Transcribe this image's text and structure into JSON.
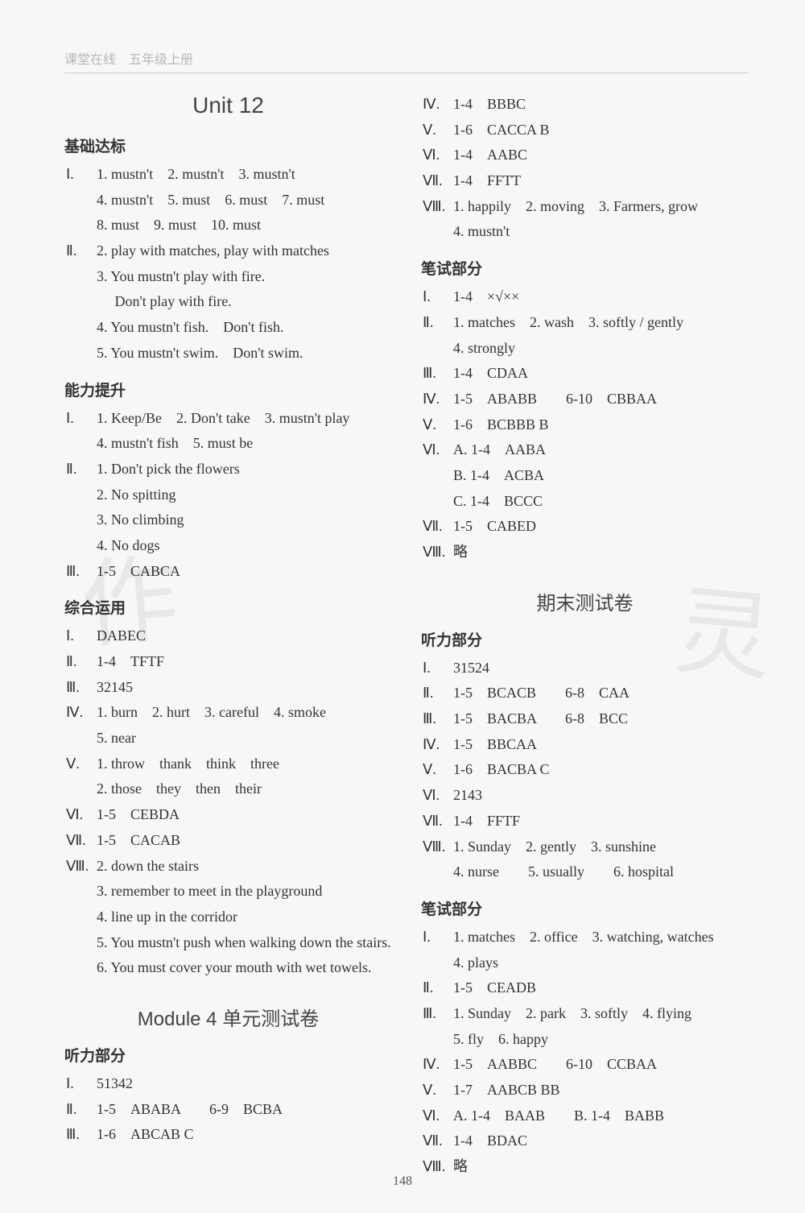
{
  "book_header": "课堂在线　五年级上册",
  "page_number": "148",
  "left_col": {
    "unit_title": "Unit 12",
    "sections": [
      {
        "heading": "基础达标",
        "items": [
          {
            "roman": "Ⅰ.",
            "lines": [
              "1. mustn't　2. mustn't　3. mustn't",
              "4. mustn't　5. must　6. must　7. must",
              "8. must　9. must　10. must"
            ]
          },
          {
            "roman": "Ⅱ.",
            "lines": [
              "2. play with matches, play with matches",
              "3. You mustn't play with fire.",
              "　 Don't play with fire.",
              "4. You mustn't fish.　Don't fish.",
              "5. You mustn't swim.　Don't swim."
            ]
          }
        ]
      },
      {
        "heading": "能力提升",
        "items": [
          {
            "roman": "Ⅰ.",
            "lines": [
              "1. Keep/Be　2. Don't take　3. mustn't play",
              "4. mustn't fish　5. must be"
            ]
          },
          {
            "roman": "Ⅱ.",
            "lines": [
              "1. Don't pick the flowers",
              "2. No spitting",
              "3. No climbing",
              "4. No dogs"
            ]
          },
          {
            "roman": "Ⅲ.",
            "lines": [
              "1-5　CABCA"
            ]
          }
        ]
      },
      {
        "heading": "综合运用",
        "items": [
          {
            "roman": "Ⅰ.",
            "lines": [
              "DABEC"
            ]
          },
          {
            "roman": "Ⅱ.",
            "lines": [
              "1-4　TFTF"
            ]
          },
          {
            "roman": "Ⅲ.",
            "lines": [
              "32145"
            ]
          },
          {
            "roman": "Ⅳ.",
            "lines": [
              "1. burn　2. hurt　3. careful　4. smoke",
              "5. near"
            ]
          },
          {
            "roman": "Ⅴ.",
            "lines": [
              "1. throw　thank　think　three",
              "2. those　they　then　their"
            ]
          },
          {
            "roman": "Ⅵ.",
            "lines": [
              "1-5　CEBDA"
            ]
          },
          {
            "roman": "Ⅶ.",
            "lines": [
              "1-5　CACAB"
            ]
          },
          {
            "roman": "Ⅷ.",
            "lines": [
              "2. down the stairs",
              "3. remember to meet in the playground",
              "4. line up in the corridor",
              "5. You mustn't push when walking down the stairs.",
              "6. You must cover your mouth with wet towels."
            ]
          }
        ]
      }
    ],
    "module": {
      "title_en": "Module 4 ",
      "title_cn": "单元测试卷",
      "sections": [
        {
          "heading": "听力部分",
          "items": [
            {
              "roman": "Ⅰ.",
              "lines": [
                "51342"
              ]
            },
            {
              "roman": "Ⅱ.",
              "lines": [
                "1-5　ABABA　　6-9　BCBA"
              ]
            },
            {
              "roman": "Ⅲ.",
              "lines": [
                "1-6　ABCAB C"
              ]
            }
          ]
        }
      ]
    }
  },
  "right_col": {
    "top_items": [
      {
        "roman": "Ⅳ.",
        "lines": [
          "1-4　BBBC"
        ]
      },
      {
        "roman": "Ⅴ.",
        "lines": [
          "1-6　CACCA B"
        ]
      },
      {
        "roman": "Ⅵ.",
        "lines": [
          "1-4　AABC"
        ]
      },
      {
        "roman": "Ⅶ.",
        "lines": [
          "1-4　FFTT"
        ]
      },
      {
        "roman": "Ⅷ.",
        "lines": [
          "1. happily　2. moving　3. Farmers, grow",
          "4. mustn't"
        ]
      }
    ],
    "sections": [
      {
        "heading": "笔试部分",
        "items": [
          {
            "roman": "Ⅰ.",
            "lines": [
              "1-4　×√××"
            ]
          },
          {
            "roman": "Ⅱ.",
            "lines": [
              "1. matches　2. wash　3. softly / gently",
              "4. strongly"
            ]
          },
          {
            "roman": "Ⅲ.",
            "lines": [
              "1-4　CDAA"
            ]
          },
          {
            "roman": "Ⅳ.",
            "lines": [
              "1-5　ABABB　　6-10　CBBAA"
            ]
          },
          {
            "roman": "Ⅴ.",
            "lines": [
              "1-6　BCBBB B"
            ]
          },
          {
            "roman": "Ⅵ.",
            "lines": [
              "A. 1-4　AABA",
              "B. 1-4　ACBA",
              "C. 1-4　BCCC"
            ]
          },
          {
            "roman": "Ⅶ.",
            "lines": [
              "1-5　CABED"
            ]
          },
          {
            "roman": "Ⅷ.",
            "lines": [
              "略"
            ]
          }
        ]
      }
    ],
    "final": {
      "title_cn": "期末测试卷",
      "sections": [
        {
          "heading": "听力部分",
          "items": [
            {
              "roman": "Ⅰ.",
              "lines": [
                "31524"
              ]
            },
            {
              "roman": "Ⅱ.",
              "lines": [
                "1-5　BCACB　　6-8　CAA"
              ]
            },
            {
              "roman": "Ⅲ.",
              "lines": [
                "1-5　BACBA　　6-8　BCC"
              ]
            },
            {
              "roman": "Ⅳ.",
              "lines": [
                "1-5　BBCAA"
              ]
            },
            {
              "roman": "Ⅴ.",
              "lines": [
                "1-6　BACBA C"
              ]
            },
            {
              "roman": "Ⅵ.",
              "lines": [
                "2143"
              ]
            },
            {
              "roman": "Ⅶ.",
              "lines": [
                "1-4　FFTF"
              ]
            },
            {
              "roman": "Ⅷ.",
              "lines": [
                "1. Sunday　2. gently　3. sunshine",
                "4. nurse　　5. usually　　6. hospital"
              ]
            }
          ]
        },
        {
          "heading": "笔试部分",
          "items": [
            {
              "roman": "Ⅰ.",
              "lines": [
                "1. matches　2. office　3. watching, watches",
                "4. plays"
              ]
            },
            {
              "roman": "Ⅱ.",
              "lines": [
                "1-5　CEADB"
              ]
            },
            {
              "roman": "Ⅲ.",
              "lines": [
                "1. Sunday　2. park　3. softly　4. flying",
                "5. fly　6. happy"
              ]
            },
            {
              "roman": "Ⅳ.",
              "lines": [
                "1-5　AABBC　　6-10　CCBAA"
              ]
            },
            {
              "roman": "Ⅴ.",
              "lines": [
                "1-7　AABCB BB"
              ]
            },
            {
              "roman": "Ⅵ.",
              "lines": [
                "A. 1-4　BAAB　　B. 1-4　BABB"
              ]
            },
            {
              "roman": "Ⅶ.",
              "lines": [
                "1-4　BDAC"
              ]
            },
            {
              "roman": "Ⅷ.",
              "lines": [
                "略"
              ]
            }
          ]
        }
      ]
    }
  }
}
